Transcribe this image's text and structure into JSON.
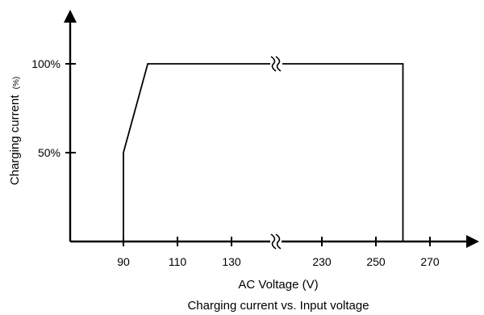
{
  "chart_data": {
    "type": "line",
    "title": "",
    "caption": "Charging current vs. Input voltage",
    "xlabel": "AC Voltage (V)",
    "ylabel": "Charging current",
    "ylabel_unit": "(%)",
    "x_ticks": [
      "90",
      "110",
      "130",
      "230",
      "250",
      "270"
    ],
    "y_ticks": [
      "50%",
      "100%"
    ],
    "x_axis_break": "between 130 and 230",
    "series": [
      {
        "points": [
          {
            "x": 90,
            "y": 0
          },
          {
            "x": 90,
            "y": 50
          },
          {
            "x": 99,
            "y": 100
          },
          {
            "x": 260,
            "y": 100
          },
          {
            "x": 260,
            "y": 0
          }
        ]
      }
    ],
    "grid": false,
    "colors": {
      "line": "#000000",
      "axis": "#000000"
    }
  }
}
